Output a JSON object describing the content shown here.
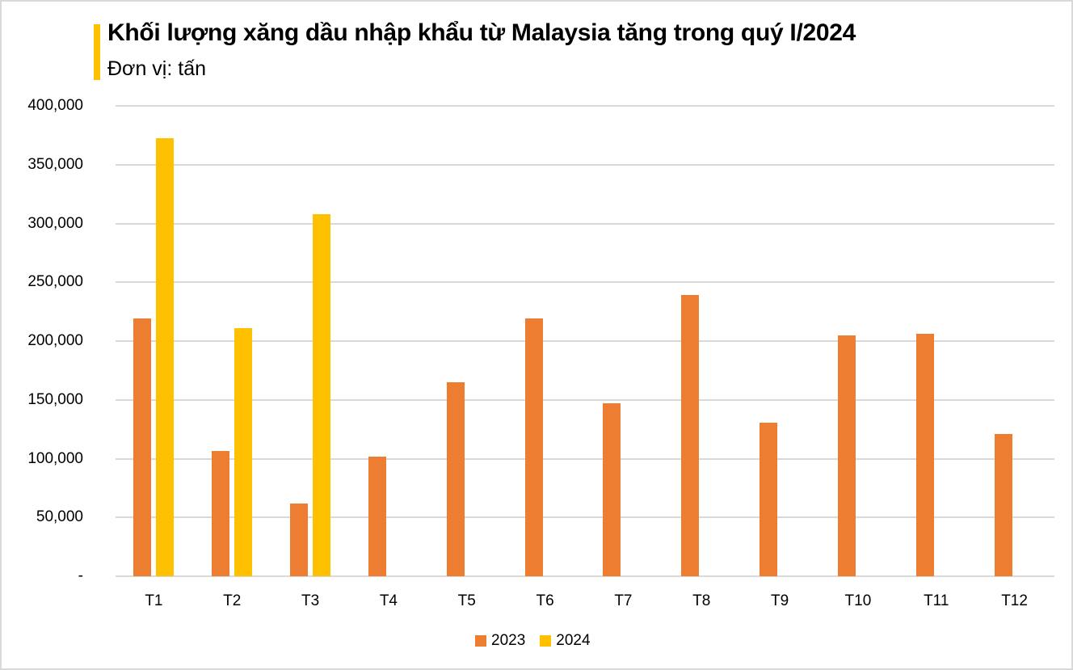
{
  "header": {
    "title": "Khối lượng xăng dầu nhập khẩu từ Malaysia tăng trong quý I/2024",
    "subtitle": "Đơn vị: tấn",
    "accent_color": "#FFC000"
  },
  "chart_data": {
    "type": "bar",
    "title": "Khối lượng xăng dầu nhập khẩu từ Malaysia tăng trong quý I/2024",
    "subtitle": "Đơn vị: tấn",
    "xlabel": "",
    "ylabel": "",
    "categories": [
      "T1",
      "T2",
      "T3",
      "T4",
      "T5",
      "T6",
      "T7",
      "T8",
      "T9",
      "T10",
      "T11",
      "T12"
    ],
    "series": [
      {
        "name": "2023",
        "color": "#ED7D31",
        "values": [
          219000,
          106500,
          62000,
          102000,
          165000,
          219000,
          147000,
          239500,
          130500,
          205000,
          206000,
          121000
        ]
      },
      {
        "name": "2024",
        "color": "#FFC000",
        "values": [
          372500,
          211000,
          308000,
          null,
          null,
          null,
          null,
          null,
          null,
          null,
          null,
          null
        ]
      }
    ],
    "ylim": [
      0,
      400000
    ],
    "yticks": [
      0,
      50000,
      100000,
      150000,
      200000,
      250000,
      300000,
      350000,
      400000
    ],
    "ytick_labels": [
      "-",
      "50,000",
      "100,000",
      "150,000",
      "200,000",
      "250,000",
      "300,000",
      "350,000",
      "400,000"
    ],
    "grid": true,
    "legend_position": "bottom"
  },
  "legend": [
    {
      "label": "2023",
      "color": "#ED7D31"
    },
    {
      "label": "2024",
      "color": "#FFC000"
    }
  ]
}
